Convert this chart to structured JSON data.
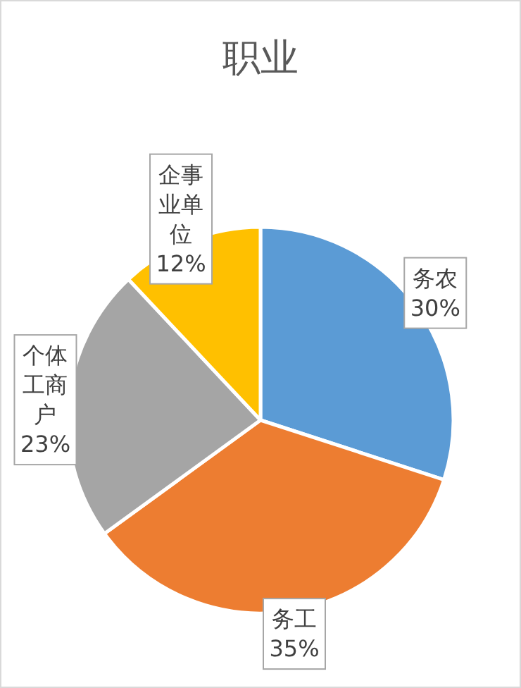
{
  "chart_data": {
    "type": "pie",
    "title": "职业",
    "categories": [
      "务农",
      "务工",
      "个体工商户",
      "企事业单位"
    ],
    "values": [
      30,
      35,
      23,
      12
    ],
    "value_labels": [
      "30%",
      "35%",
      "23%",
      "12%"
    ],
    "colors": [
      "#5b9bd5",
      "#ed7d31",
      "#a5a5a5",
      "#ffc000"
    ]
  }
}
